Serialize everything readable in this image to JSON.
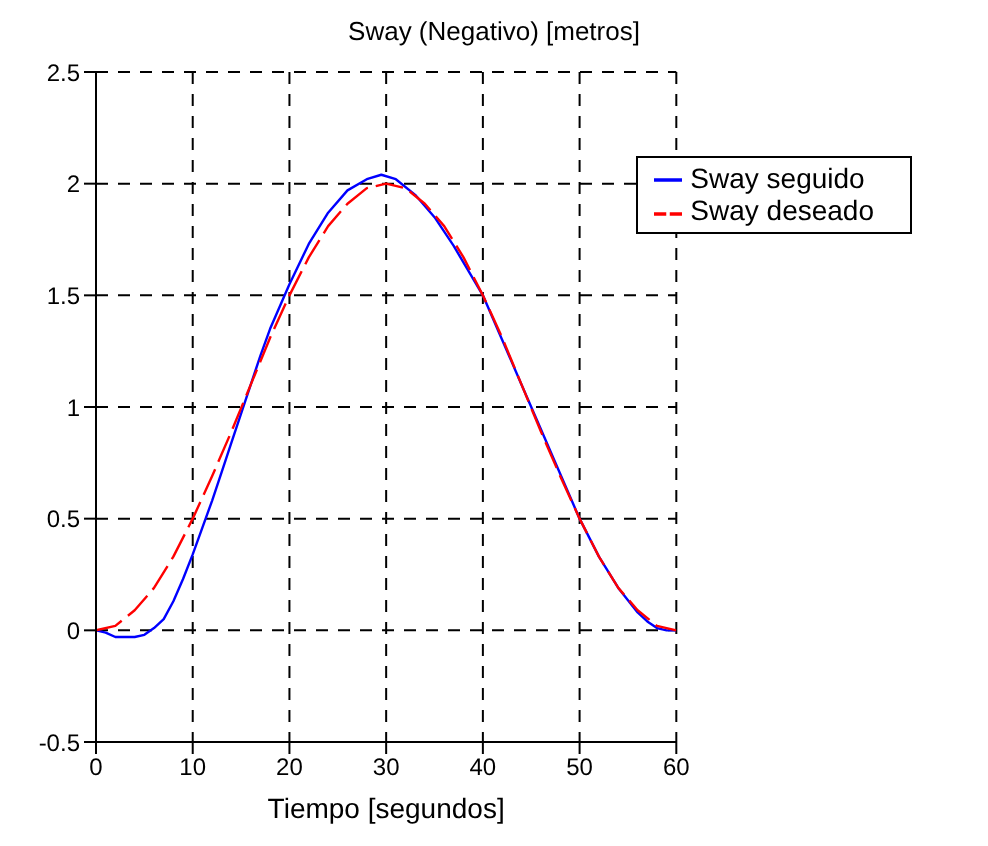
{
  "chart_data": {
    "type": "line",
    "title": "Sway (Negativo) [metros]",
    "xlabel": "Tiempo [segundos]",
    "xlim": [
      0,
      60
    ],
    "xticks": [
      0,
      10,
      20,
      30,
      40,
      50,
      60
    ],
    "ylim": [
      -0.5,
      2.5
    ],
    "yticks": [
      -0.5,
      0,
      0.5,
      1,
      1.5,
      2,
      2.5
    ],
    "grid": true,
    "legend": "top right",
    "series": [
      {
        "name": "Sway seguido",
        "color": "#0000ff",
        "line_style": "solid",
        "x": [
          0,
          1,
          2,
          3,
          4,
          5,
          6,
          7,
          8,
          9,
          10,
          11,
          12,
          13,
          14,
          15,
          16,
          17,
          18,
          19,
          20,
          22,
          24,
          26,
          28,
          29.5,
          31,
          33,
          35,
          37,
          40,
          42,
          44,
          46,
          48,
          50,
          52,
          54,
          56,
          57,
          58,
          59,
          60
        ],
        "values": [
          0,
          -0.01,
          -0.03,
          -0.03,
          -0.03,
          -0.02,
          0.01,
          0.05,
          0.13,
          0.23,
          0.34,
          0.46,
          0.58,
          0.71,
          0.84,
          0.97,
          1.1,
          1.23,
          1.35,
          1.45,
          1.55,
          1.73,
          1.87,
          1.97,
          2.02,
          2.04,
          2.02,
          1.95,
          1.85,
          1.72,
          1.5,
          1.3,
          1.1,
          0.9,
          0.7,
          0.5,
          0.33,
          0.19,
          0.08,
          0.04,
          0.01,
          0,
          0
        ]
      },
      {
        "name": "Sway deseado",
        "color": "#ff0000",
        "line_style": "dashed",
        "x": [
          0,
          2,
          4,
          6,
          8,
          10,
          12,
          14,
          16,
          18,
          20,
          22,
          24,
          26,
          28,
          30,
          32,
          34,
          36,
          38,
          40,
          42,
          44,
          46,
          48,
          50,
          52,
          54,
          56,
          58,
          60
        ],
        "values": [
          0,
          0.02,
          0.09,
          0.19,
          0.33,
          0.5,
          0.69,
          0.89,
          1.1,
          1.31,
          1.5,
          1.67,
          1.81,
          1.91,
          1.98,
          2,
          1.98,
          1.91,
          1.81,
          1.67,
          1.5,
          1.31,
          1.1,
          0.89,
          0.69,
          0.5,
          0.33,
          0.19,
          0.09,
          0.02,
          0
        ]
      }
    ]
  }
}
